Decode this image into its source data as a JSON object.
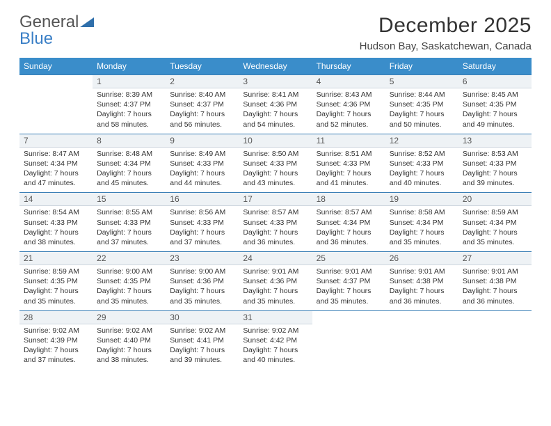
{
  "logo": {
    "word1": "General",
    "word2": "Blue"
  },
  "title": "December 2025",
  "location": "Hudson Bay, Saskatchewan, Canada",
  "colors": {
    "header_bg": "#3a8dca",
    "header_text": "#ffffff",
    "daynum_bg": "#eef2f5",
    "day_border_top": "#3a7fb6",
    "logo_blue": "#3a7fc6"
  },
  "weekdays": [
    "Sunday",
    "Monday",
    "Tuesday",
    "Wednesday",
    "Thursday",
    "Friday",
    "Saturday"
  ],
  "weeks": [
    [
      {
        "day": "",
        "sunrise": "",
        "sunset": "",
        "daylight": ""
      },
      {
        "day": "1",
        "sunrise": "Sunrise: 8:39 AM",
        "sunset": "Sunset: 4:37 PM",
        "daylight": "Daylight: 7 hours and 58 minutes."
      },
      {
        "day": "2",
        "sunrise": "Sunrise: 8:40 AM",
        "sunset": "Sunset: 4:37 PM",
        "daylight": "Daylight: 7 hours and 56 minutes."
      },
      {
        "day": "3",
        "sunrise": "Sunrise: 8:41 AM",
        "sunset": "Sunset: 4:36 PM",
        "daylight": "Daylight: 7 hours and 54 minutes."
      },
      {
        "day": "4",
        "sunrise": "Sunrise: 8:43 AM",
        "sunset": "Sunset: 4:36 PM",
        "daylight": "Daylight: 7 hours and 52 minutes."
      },
      {
        "day": "5",
        "sunrise": "Sunrise: 8:44 AM",
        "sunset": "Sunset: 4:35 PM",
        "daylight": "Daylight: 7 hours and 50 minutes."
      },
      {
        "day": "6",
        "sunrise": "Sunrise: 8:45 AM",
        "sunset": "Sunset: 4:35 PM",
        "daylight": "Daylight: 7 hours and 49 minutes."
      }
    ],
    [
      {
        "day": "7",
        "sunrise": "Sunrise: 8:47 AM",
        "sunset": "Sunset: 4:34 PM",
        "daylight": "Daylight: 7 hours and 47 minutes."
      },
      {
        "day": "8",
        "sunrise": "Sunrise: 8:48 AM",
        "sunset": "Sunset: 4:34 PM",
        "daylight": "Daylight: 7 hours and 45 minutes."
      },
      {
        "day": "9",
        "sunrise": "Sunrise: 8:49 AM",
        "sunset": "Sunset: 4:33 PM",
        "daylight": "Daylight: 7 hours and 44 minutes."
      },
      {
        "day": "10",
        "sunrise": "Sunrise: 8:50 AM",
        "sunset": "Sunset: 4:33 PM",
        "daylight": "Daylight: 7 hours and 43 minutes."
      },
      {
        "day": "11",
        "sunrise": "Sunrise: 8:51 AM",
        "sunset": "Sunset: 4:33 PM",
        "daylight": "Daylight: 7 hours and 41 minutes."
      },
      {
        "day": "12",
        "sunrise": "Sunrise: 8:52 AM",
        "sunset": "Sunset: 4:33 PM",
        "daylight": "Daylight: 7 hours and 40 minutes."
      },
      {
        "day": "13",
        "sunrise": "Sunrise: 8:53 AM",
        "sunset": "Sunset: 4:33 PM",
        "daylight": "Daylight: 7 hours and 39 minutes."
      }
    ],
    [
      {
        "day": "14",
        "sunrise": "Sunrise: 8:54 AM",
        "sunset": "Sunset: 4:33 PM",
        "daylight": "Daylight: 7 hours and 38 minutes."
      },
      {
        "day": "15",
        "sunrise": "Sunrise: 8:55 AM",
        "sunset": "Sunset: 4:33 PM",
        "daylight": "Daylight: 7 hours and 37 minutes."
      },
      {
        "day": "16",
        "sunrise": "Sunrise: 8:56 AM",
        "sunset": "Sunset: 4:33 PM",
        "daylight": "Daylight: 7 hours and 37 minutes."
      },
      {
        "day": "17",
        "sunrise": "Sunrise: 8:57 AM",
        "sunset": "Sunset: 4:33 PM",
        "daylight": "Daylight: 7 hours and 36 minutes."
      },
      {
        "day": "18",
        "sunrise": "Sunrise: 8:57 AM",
        "sunset": "Sunset: 4:34 PM",
        "daylight": "Daylight: 7 hours and 36 minutes."
      },
      {
        "day": "19",
        "sunrise": "Sunrise: 8:58 AM",
        "sunset": "Sunset: 4:34 PM",
        "daylight": "Daylight: 7 hours and 35 minutes."
      },
      {
        "day": "20",
        "sunrise": "Sunrise: 8:59 AM",
        "sunset": "Sunset: 4:34 PM",
        "daylight": "Daylight: 7 hours and 35 minutes."
      }
    ],
    [
      {
        "day": "21",
        "sunrise": "Sunrise: 8:59 AM",
        "sunset": "Sunset: 4:35 PM",
        "daylight": "Daylight: 7 hours and 35 minutes."
      },
      {
        "day": "22",
        "sunrise": "Sunrise: 9:00 AM",
        "sunset": "Sunset: 4:35 PM",
        "daylight": "Daylight: 7 hours and 35 minutes."
      },
      {
        "day": "23",
        "sunrise": "Sunrise: 9:00 AM",
        "sunset": "Sunset: 4:36 PM",
        "daylight": "Daylight: 7 hours and 35 minutes."
      },
      {
        "day": "24",
        "sunrise": "Sunrise: 9:01 AM",
        "sunset": "Sunset: 4:36 PM",
        "daylight": "Daylight: 7 hours and 35 minutes."
      },
      {
        "day": "25",
        "sunrise": "Sunrise: 9:01 AM",
        "sunset": "Sunset: 4:37 PM",
        "daylight": "Daylight: 7 hours and 35 minutes."
      },
      {
        "day": "26",
        "sunrise": "Sunrise: 9:01 AM",
        "sunset": "Sunset: 4:38 PM",
        "daylight": "Daylight: 7 hours and 36 minutes."
      },
      {
        "day": "27",
        "sunrise": "Sunrise: 9:01 AM",
        "sunset": "Sunset: 4:38 PM",
        "daylight": "Daylight: 7 hours and 36 minutes."
      }
    ],
    [
      {
        "day": "28",
        "sunrise": "Sunrise: 9:02 AM",
        "sunset": "Sunset: 4:39 PM",
        "daylight": "Daylight: 7 hours and 37 minutes."
      },
      {
        "day": "29",
        "sunrise": "Sunrise: 9:02 AM",
        "sunset": "Sunset: 4:40 PM",
        "daylight": "Daylight: 7 hours and 38 minutes."
      },
      {
        "day": "30",
        "sunrise": "Sunrise: 9:02 AM",
        "sunset": "Sunset: 4:41 PM",
        "daylight": "Daylight: 7 hours and 39 minutes."
      },
      {
        "day": "31",
        "sunrise": "Sunrise: 9:02 AM",
        "sunset": "Sunset: 4:42 PM",
        "daylight": "Daylight: 7 hours and 40 minutes."
      },
      {
        "day": "",
        "sunrise": "",
        "sunset": "",
        "daylight": ""
      },
      {
        "day": "",
        "sunrise": "",
        "sunset": "",
        "daylight": ""
      },
      {
        "day": "",
        "sunrise": "",
        "sunset": "",
        "daylight": ""
      }
    ]
  ]
}
